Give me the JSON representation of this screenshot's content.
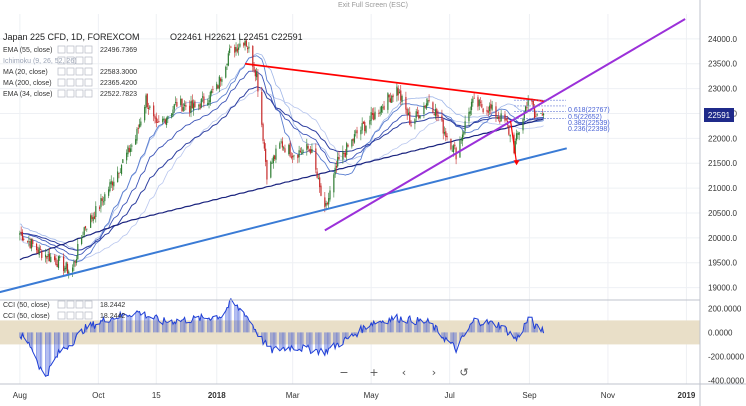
{
  "top_banner": "Exit Full Screen (ESC)",
  "header": {
    "symbol": "Japan 225 CFD, 1D, FOREXCOM",
    "ohlc": "O22461  H22621  L22451  C22591"
  },
  "indicators": [
    {
      "label": "EMA (55, close)",
      "value": "22496.7369"
    },
    {
      "label": "Ichimoku (9, 26, 52, 26)",
      "value": ""
    },
    {
      "label": "MA (20, close)",
      "value": "22583.3000"
    },
    {
      "label": "MA (200, close)",
      "value": "22365.4200"
    },
    {
      "label": "EMA (34, close)",
      "value": "22522.7823"
    }
  ],
  "cci_labels": [
    {
      "label": "CCI (50, close)",
      "value": "18.2442"
    },
    {
      "label": "CCI (50, close)",
      "value": "18.2442"
    }
  ],
  "price_badge": "22591",
  "fib_labels": [
    "0.618(22767)",
    "0.5(22652)",
    "0.382(22539)",
    "0.236(22398)"
  ],
  "colors": {
    "up": "#2e7d32",
    "down": "#c62828",
    "ema55": "#2e3fa0",
    "ma200": "#1a237e",
    "trend_red": "#ff0000",
    "trend_purple": "#9b30d9",
    "trend_blue": "#3a7bd5",
    "cci": "#1f3fd6",
    "cci_band": "#e9dfc8",
    "badge": "#1f2a8a"
  },
  "chart_data": {
    "type": "candlestick",
    "title": "Japan 225 CFD, 1D, FOREXCOM",
    "y_ticks": [
      19000,
      19500,
      20000,
      20500,
      21000,
      21500,
      22000,
      22500,
      23000,
      23500,
      24000
    ],
    "y_tick_labels": [
      "19000.0",
      "19500.0",
      "20000.0",
      "20500.0",
      "21000.0",
      "21500.0",
      "22000.0",
      "22500.0",
      "23000.0",
      "23500.0",
      "24000.0"
    ],
    "ylim": [
      18750,
      24500
    ],
    "x_labels": [
      "Aug",
      "Oct",
      "15",
      "2018",
      "Mar",
      "May",
      "Jul",
      "Sep",
      "Nov",
      "2019"
    ],
    "price_path": [
      [
        "2017-08-01",
        20100
      ],
      [
        "2017-08-15",
        19750
      ],
      [
        "2017-09-01",
        19500
      ],
      [
        "2017-09-10",
        19300
      ],
      [
        "2017-09-20",
        20200
      ],
      [
        "2017-10-01",
        20600
      ],
      [
        "2017-10-15",
        21300
      ],
      [
        "2017-10-30",
        22000
      ],
      [
        "2017-11-07",
        22800
      ],
      [
        "2017-11-15",
        22200
      ],
      [
        "2017-12-01",
        22700
      ],
      [
        "2017-12-15",
        22600
      ],
      [
        "2018-01-01",
        23000
      ],
      [
        "2018-01-10",
        23700
      ],
      [
        "2018-01-23",
        24000
      ],
      [
        "2018-02-01",
        23300
      ],
      [
        "2018-02-09",
        21300
      ],
      [
        "2018-02-20",
        21900
      ],
      [
        "2018-03-01",
        21700
      ],
      [
        "2018-03-15",
        21800
      ],
      [
        "2018-03-26",
        20500
      ],
      [
        "2018-04-05",
        21500
      ],
      [
        "2018-04-20",
        22100
      ],
      [
        "2018-05-01",
        22400
      ],
      [
        "2018-05-21",
        23000
      ],
      [
        "2018-06-01",
        22300
      ],
      [
        "2018-06-15",
        22800
      ],
      [
        "2018-06-26",
        22200
      ],
      [
        "2018-07-06",
        21700
      ],
      [
        "2018-07-18",
        22700
      ],
      [
        "2018-08-01",
        22600
      ],
      [
        "2018-08-14",
        22300
      ],
      [
        "2018-08-20",
        21800
      ],
      [
        "2018-09-01",
        22900
      ],
      [
        "2018-09-05",
        22400
      ],
      [
        "2018-09-12",
        22591
      ]
    ],
    "annotations": {
      "red_trendline": {
        "from": [
          "2018-01-23",
          23500
        ],
        "to": [
          "2018-09-12",
          22750
        ]
      },
      "purple_trendline": {
        "from": [
          "2018-03-26",
          20150
        ],
        "to": [
          "2018-12-31",
          24400
        ]
      },
      "blue_trendline": {
        "from": [
          "2017-07-15",
          18900
        ],
        "to": [
          "2018-09-30",
          21800
        ]
      },
      "fib_retracement_levels": [
        22767,
        22652,
        22539,
        22398
      ]
    },
    "cci": {
      "label": "CCI (50, close)",
      "last_value": 18.2442,
      "y_ticks": [
        200,
        0,
        -200,
        -400
      ],
      "y_tick_labels": [
        "200.0000",
        "0.0000",
        "-200.0000",
        "-400.0000"
      ],
      "band": [
        -100,
        100
      ],
      "ylim": [
        -430,
        270
      ],
      "path": [
        [
          "2017-08-01",
          -20
        ],
        [
          "2017-08-10",
          -120
        ],
        [
          "2017-08-20",
          -380
        ],
        [
          "2017-09-01",
          -160
        ],
        [
          "2017-09-10",
          -90
        ],
        [
          "2017-09-20",
          30
        ],
        [
          "2017-10-10",
          120
        ],
        [
          "2017-11-01",
          170
        ],
        [
          "2017-11-20",
          90
        ],
        [
          "2017-12-15",
          110
        ],
        [
          "2018-01-05",
          140
        ],
        [
          "2018-01-12",
          250
        ],
        [
          "2018-01-23",
          160
        ],
        [
          "2018-02-05",
          -60
        ],
        [
          "2018-02-12",
          -150
        ],
        [
          "2018-03-01",
          -120
        ],
        [
          "2018-03-26",
          -160
        ],
        [
          "2018-04-15",
          -40
        ],
        [
          "2018-05-01",
          80
        ],
        [
          "2018-05-21",
          120
        ],
        [
          "2018-06-15",
          80
        ],
        [
          "2018-07-06",
          -140
        ],
        [
          "2018-07-20",
          100
        ],
        [
          "2018-08-10",
          60
        ],
        [
          "2018-08-22",
          -60
        ],
        [
          "2018-09-01",
          130
        ],
        [
          "2018-09-06",
          40
        ],
        [
          "2018-09-12",
          18.2442
        ]
      ]
    }
  }
}
